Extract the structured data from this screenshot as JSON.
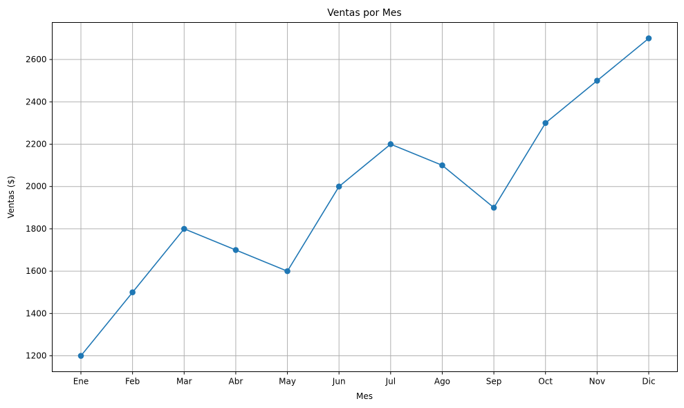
{
  "chart_data": {
    "type": "line",
    "title": "Ventas por Mes",
    "xlabel": "Mes",
    "ylabel": "Ventas ($)",
    "categories": [
      "Ene",
      "Feb",
      "Mar",
      "Abr",
      "May",
      "Jun",
      "Jul",
      "Ago",
      "Sep",
      "Oct",
      "Nov",
      "Dic"
    ],
    "series": [
      {
        "name": "Ventas",
        "values": [
          1200,
          1500,
          1800,
          1700,
          1600,
          2000,
          2200,
          2100,
          1900,
          2300,
          2500,
          2700
        ],
        "color": "#1f77b4",
        "marker": "circle"
      }
    ],
    "yticks": [
      1200,
      1400,
      1600,
      1800,
      2000,
      2200,
      2400,
      2600
    ],
    "yticks_labels": [
      "1200",
      "1400",
      "1600",
      "1800",
      "2000",
      "2200",
      "2400",
      "2600"
    ],
    "ylim": [
      1125,
      2775
    ],
    "grid": true,
    "grid_color": "#b0b0b0",
    "axis_color": "#000000"
  }
}
